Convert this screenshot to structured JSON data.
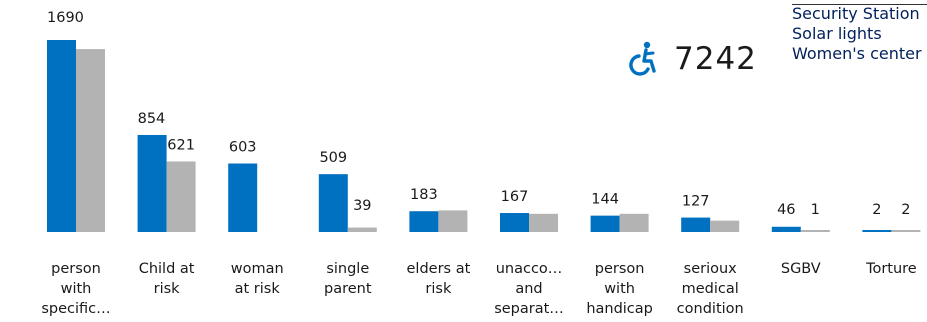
{
  "chart_data": {
    "type": "bar",
    "categories": [
      [
        "person",
        "with",
        "specific…"
      ],
      [
        "Child at",
        "risk"
      ],
      [
        "woman",
        "at risk"
      ],
      [
        "single",
        "parent"
      ],
      [
        "elders at",
        "risk"
      ],
      [
        "unacco…",
        "and",
        "separat…"
      ],
      [
        "person",
        "with",
        "handicap"
      ],
      [
        "serioux",
        "medical",
        "condition"
      ],
      [
        "SGBV"
      ],
      [
        "Torture"
      ]
    ],
    "series": [
      {
        "color": "#0070c0",
        "values": [
          1690,
          854,
          603,
          509,
          183,
          167,
          144,
          127,
          46,
          2
        ],
        "labels": [
          "1690",
          "854",
          "603",
          "509",
          "183",
          "167",
          "144",
          "127",
          "46",
          "2"
        ]
      },
      {
        "color": "#b3b3b3",
        "values": [
          1610,
          621,
          0,
          39,
          190,
          160,
          160,
          100,
          1,
          2
        ],
        "labels": [
          "",
          "621",
          "",
          "39",
          "",
          "",
          "",
          "",
          "1",
          "2"
        ]
      }
    ],
    "ylim": [
      0,
      1690
    ]
  },
  "kpi": {
    "value": "7242",
    "icon": "wheelchair-icon",
    "color": "#0070c0"
  },
  "legend": [
    "Security Station",
    "Solar lights",
    "Women's center"
  ],
  "colors": {
    "text": "#1a1a1a",
    "legend_text": "#00205c"
  }
}
